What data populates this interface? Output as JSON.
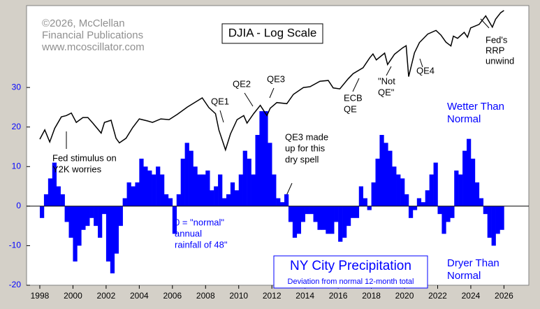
{
  "chart_data": [
    {
      "type": "bar",
      "title": "NY City Precipitation",
      "subtitle": "Deviation from normal 12-month total",
      "color": "#0000ff",
      "xlim": [
        1997.2,
        2027.5
      ],
      "xticks": [
        1998,
        2000,
        2002,
        2004,
        2006,
        2008,
        2010,
        2012,
        2014,
        2016,
        2018,
        2020,
        2022,
        2024,
        2026
      ],
      "ylim": [
        -20,
        50.7
      ],
      "yticks": [
        -20,
        -10,
        0,
        10,
        20,
        30
      ],
      "x": [
        1998.125,
        1998.375,
        1998.625,
        1998.875,
        1999.125,
        1999.375,
        1999.625,
        1999.875,
        2000.125,
        2000.375,
        2000.625,
        2000.875,
        2001.125,
        2001.375,
        2001.625,
        2001.875,
        2002.125,
        2002.375,
        2002.625,
        2002.875,
        2003.125,
        2003.375,
        2003.625,
        2003.875,
        2004.125,
        2004.375,
        2004.625,
        2004.875,
        2005.125,
        2005.375,
        2005.625,
        2005.875,
        2006.125,
        2006.375,
        2006.625,
        2006.875,
        2007.125,
        2007.375,
        2007.625,
        2007.875,
        2008.125,
        2008.375,
        2008.625,
        2008.875,
        2009.125,
        2009.375,
        2009.625,
        2009.875,
        2010.125,
        2010.375,
        2010.625,
        2010.875,
        2011.125,
        2011.375,
        2011.625,
        2011.875,
        2012.125,
        2012.375,
        2012.625,
        2012.875,
        2013.125,
        2013.375,
        2013.625,
        2013.875,
        2014.125,
        2014.375,
        2014.625,
        2014.875,
        2015.125,
        2015.375,
        2015.625,
        2015.875,
        2016.125,
        2016.375,
        2016.625,
        2016.875,
        2017.125,
        2017.375,
        2017.625,
        2017.875,
        2018.125,
        2018.375,
        2018.625,
        2018.875,
        2019.125,
        2019.375,
        2019.625,
        2019.875,
        2020.125,
        2020.375,
        2020.625,
        2020.875,
        2021.125,
        2021.375,
        2021.625,
        2021.875,
        2022.125,
        2022.375,
        2022.625,
        2022.875,
        2023.125,
        2023.375,
        2023.625,
        2023.875,
        2024.125,
        2024.375,
        2024.625,
        2024.875,
        2025.125,
        2025.375,
        2025.625,
        2025.875
      ],
      "values": [
        -3,
        3,
        7,
        11,
        5,
        3,
        -4,
        -8,
        -14,
        -10,
        -6,
        -5,
        -3,
        -5,
        -8,
        -2,
        -14,
        -17,
        -12,
        -5,
        2,
        6,
        5,
        6,
        12,
        10,
        9,
        8,
        10,
        8,
        3,
        2,
        -7,
        3,
        12,
        16,
        14,
        10,
        8,
        8,
        9,
        4,
        5,
        8,
        2,
        3,
        6,
        4,
        8,
        14,
        12,
        8,
        18,
        24,
        24,
        16,
        8,
        2,
        1,
        3,
        -4,
        -8,
        -7,
        -4,
        -2,
        -2,
        -4,
        -6,
        -6,
        -7,
        -7,
        -4,
        -9,
        -8,
        -5,
        -3,
        -3,
        5,
        2,
        -1,
        6,
        12,
        18,
        16,
        14,
        10,
        8,
        7,
        3,
        -3,
        -1,
        2,
        1,
        4,
        8,
        11,
        -2,
        -7,
        -4,
        -3,
        9,
        8,
        14,
        17,
        12,
        6,
        2,
        -2,
        -8,
        -10,
        -7,
        -6
      ],
      "annotations": [
        [
          "©2026, McClellan",
          "Financial Publications",
          "www.mcoscillator.com"
        ],
        [
          "Fed stimulus on",
          "Y2K worries"
        ],
        [
          "QE1"
        ],
        [
          "QE2"
        ],
        [
          "QE3"
        ],
        [
          "QE3 made",
          "up for this",
          "dry spell"
        ],
        [
          "ECB",
          "QE"
        ],
        [
          "\"Not",
          "QE\""
        ],
        [
          "QE4"
        ],
        [
          "Fed's",
          "RRP",
          "unwind"
        ],
        [
          "Wetter Than",
          "Normal"
        ],
        [
          "Dryer Than",
          "Normal"
        ],
        [
          "0 = \"normal\"",
          "annual",
          "rainfall of 48\""
        ]
      ]
    },
    {
      "type": "line",
      "title": "DJIA - Log Scale",
      "color": "#000000",
      "log_scale": true,
      "xlim": [
        1997.2,
        2027.5
      ],
      "ylim": [
        1020,
        51400
      ],
      "x": [
        1998.0,
        1998.3,
        1998.6,
        1998.9,
        1999.3,
        1999.6,
        1999.9,
        2000.2,
        2000.6,
        2000.9,
        2001.2,
        2001.7,
        2001.9,
        2002.3,
        2002.6,
        2002.8,
        2003.2,
        2003.6,
        2004.0,
        2004.5,
        2004.8,
        2005.3,
        2005.8,
        2006.3,
        2006.9,
        2007.5,
        2007.8,
        2008.2,
        2008.6,
        2008.8,
        2009.2,
        2009.5,
        2009.9,
        2010.3,
        2010.5,
        2010.9,
        2011.3,
        2011.7,
        2011.9,
        2012.3,
        2012.9,
        2013.3,
        2013.9,
        2014.3,
        2014.9,
        2015.4,
        2015.7,
        2016.1,
        2016.6,
        2016.9,
        2017.5,
        2017.9,
        2018.1,
        2018.3,
        2018.8,
        2018.98,
        2019.4,
        2019.9,
        2020.1,
        2020.25,
        2020.6,
        2020.9,
        2021.4,
        2021.9,
        2022.2,
        2022.5,
        2022.8,
        2022.95,
        2023.2,
        2023.6,
        2023.8,
        2023.99,
        2024.5,
        2024.9,
        2025.3,
        2025.5,
        2025.8,
        2026.0
      ],
      "values": [
        7900,
        9000,
        7600,
        9200,
        10800,
        11000,
        11400,
        10000,
        10700,
        10700,
        9900,
        8600,
        10000,
        10300,
        8000,
        7500,
        8000,
        9300,
        10500,
        10200,
        10000,
        10500,
        10400,
        11200,
        12400,
        13500,
        14100,
        12300,
        11300,
        9000,
        6800,
        8500,
        10400,
        11000,
        9900,
        11300,
        12700,
        11000,
        12200,
        13200,
        13000,
        14800,
        16300,
        16500,
        17800,
        18000,
        16200,
        16000,
        18400,
        19800,
        21500,
        24700,
        26100,
        24000,
        26400,
        22500,
        26000,
        28500,
        29300,
        19000,
        26500,
        30600,
        34500,
        36300,
        34000,
        30800,
        29200,
        33500,
        32500,
        35300,
        33000,
        37600,
        39500,
        44500,
        38000,
        42500,
        46500,
        48000
      ]
    }
  ]
}
